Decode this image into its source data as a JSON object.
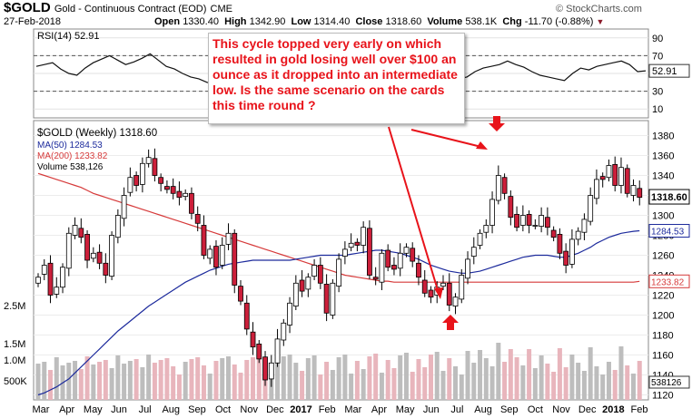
{
  "header": {
    "symbol": "$GOLD",
    "description": "Gold - Continuous Contract (EOD)",
    "exchange": "CME",
    "date": "27-Feb-2018",
    "copyright": "© StockCharts.com",
    "open_label": "Open",
    "open": "1330.40",
    "high_label": "High",
    "high": "1342.90",
    "low_label": "Low",
    "low": "1314.40",
    "close_label": "Close",
    "close": "1318.60",
    "volume_label": "Volume",
    "volume": "538.1K",
    "chg_label": "Chg",
    "chg": "-11.70 (-0.88%)"
  },
  "annotation_text": "This cycle topped very early on which resulted in gold losing well over $100 an ounce as it dropped into an intermediate low. Is the same scenario on the cards this time round ?",
  "colors": {
    "up": "#d4d4d4",
    "down": "#cc1f3a",
    "ma50": "#1c2a9c",
    "ma200": "#d63a3a",
    "annotation": "#e8131a",
    "rsi_line": "#111111",
    "vol_up": "#bdbdbd",
    "vol_down": "#e8b5bc"
  },
  "chart_data": [
    {
      "type": "line",
      "title": "RSI(14) 52.91",
      "legend": "RSI(14) 52.91",
      "y_ticks": [
        90,
        70,
        50,
        30,
        10
      ],
      "ylim": [
        0,
        100
      ],
      "reference_lines": [
        70,
        30
      ],
      "last_value": "52.91",
      "last_label": "52.91",
      "values": [
        58,
        60,
        62,
        55,
        50,
        48,
        56,
        62,
        66,
        70,
        65,
        60,
        63,
        67,
        72,
        65,
        58,
        55,
        50,
        46,
        44,
        40,
        38,
        42,
        48,
        44,
        40,
        36,
        38,
        42,
        35,
        30,
        32,
        36,
        44,
        50,
        48,
        45,
        52,
        55,
        58,
        60,
        56,
        50,
        48,
        52,
        54,
        56,
        58,
        54,
        50,
        48,
        44,
        46,
        52,
        56,
        58,
        60,
        64,
        60,
        57,
        52,
        48,
        46,
        44,
        42,
        50,
        56,
        54,
        58,
        60,
        62,
        64,
        60,
        52,
        53
      ]
    },
    {
      "type": "candlestick",
      "title": "$GOLD (Weekly) 1318.60",
      "legend": [
        {
          "label": "$GOLD (Weekly) 1318.60"
        },
        {
          "label": "MA(50) 1284.53",
          "color": "#1c2a9c"
        },
        {
          "label": "MA(200) 1233.82",
          "color": "#d63a3a"
        },
        {
          "label": "Volume 538,126"
        }
      ],
      "y_ticks": [
        1380,
        1360,
        1340,
        1320,
        1300,
        1280,
        1260,
        1240,
        1220,
        1200,
        1180,
        1160,
        1140,
        1120
      ],
      "ylim": [
        1115,
        1395
      ],
      "x_labels": [
        "Mar",
        "Apr",
        "May",
        "Jun",
        "Jul",
        "Aug",
        "Sep",
        "Oct",
        "Nov",
        "Dec",
        "2017",
        "Feb",
        "Mar",
        "Apr",
        "May",
        "Jun",
        "Jul",
        "Aug",
        "Sep",
        "Oct",
        "Nov",
        "Dec",
        "2018",
        "Feb"
      ],
      "last_price_label": "1318.60",
      "ma50_label": "1284.53",
      "ma200_label": "1233.82",
      "volume_y_labels": [
        "2.5M",
        "1.5M",
        "1.0M",
        "500K"
      ],
      "volume_last_label": "538126",
      "closes": [
        1238,
        1250,
        1220,
        1228,
        1248,
        1282,
        1290,
        1278,
        1255,
        1262,
        1252,
        1240,
        1280,
        1300,
        1320,
        1338,
        1330,
        1352,
        1358,
        1340,
        1332,
        1326,
        1322,
        1318,
        1322,
        1302,
        1292,
        1260,
        1266,
        1248,
        1270,
        1282,
        1230,
        1214,
        1186,
        1168,
        1156,
        1135,
        1152,
        1176,
        1192,
        1212,
        1232,
        1224,
        1238,
        1250,
        1232,
        1202,
        1232,
        1256,
        1266,
        1272,
        1270,
        1288,
        1240,
        1236,
        1262,
        1248,
        1246,
        1262,
        1268,
        1254,
        1238,
        1222,
        1218,
        1228,
        1232,
        1210,
        1218,
        1240,
        1256,
        1268,
        1282,
        1290,
        1316,
        1340,
        1322,
        1298,
        1288,
        1300,
        1290,
        1290,
        1300,
        1288,
        1278,
        1262,
        1250,
        1276,
        1284,
        1296,
        1320,
        1336,
        1336,
        1350,
        1330,
        1348,
        1322,
        1330,
        1318
      ],
      "ma50": [
        1120,
        1122,
        1125,
        1128,
        1132,
        1136,
        1142,
        1148,
        1154,
        1160,
        1166,
        1172,
        1178,
        1184,
        1189,
        1194,
        1199,
        1204,
        1209,
        1213,
        1217,
        1221,
        1225,
        1229,
        1233,
        1236,
        1239,
        1242,
        1245,
        1247,
        1249,
        1251,
        1252,
        1253,
        1254,
        1255,
        1255,
        1255,
        1255,
        1255,
        1255,
        1255,
        1256,
        1257,
        1258,
        1259,
        1260,
        1260,
        1260,
        1260,
        1260,
        1261,
        1262,
        1263,
        1264,
        1265,
        1265,
        1264,
        1263,
        1262,
        1260,
        1258,
        1256,
        1253,
        1250,
        1248,
        1246,
        1244,
        1243,
        1242,
        1242,
        1243,
        1244,
        1246,
        1248,
        1250,
        1252,
        1254,
        1256,
        1258,
        1259,
        1260,
        1260,
        1260,
        1259,
        1258,
        1258,
        1260,
        1262,
        1265,
        1268,
        1272,
        1275,
        1278,
        1280,
        1282,
        1283,
        1284,
        1284.53
      ],
      "ma200": [
        1342,
        1340,
        1338,
        1336,
        1334,
        1332,
        1330,
        1328,
        1325,
        1322,
        1320,
        1318,
        1316,
        1314,
        1312,
        1310,
        1308,
        1306,
        1304,
        1302,
        1300,
        1298,
        1296,
        1294,
        1292,
        1290,
        1288,
        1286,
        1284,
        1282,
        1280,
        1278,
        1276,
        1274,
        1272,
        1270,
        1268,
        1266,
        1264,
        1262,
        1260,
        1258,
        1256,
        1254,
        1252,
        1250,
        1248,
        1246,
        1244,
        1242,
        1240,
        1239,
        1238,
        1237,
        1236,
        1235,
        1234,
        1234,
        1233,
        1233,
        1233,
        1233,
        1233,
        1233,
        1233,
        1233,
        1233,
        1233,
        1233,
        1233,
        1233,
        1233,
        1233,
        1233,
        1233,
        1233,
        1233,
        1233,
        1233,
        1233,
        1233,
        1233,
        1233,
        1233,
        1233,
        1233,
        1233,
        1233,
        1233,
        1233,
        1233,
        1233,
        1233,
        1233,
        1233,
        1233,
        1233,
        1233,
        1233.82
      ]
    }
  ]
}
